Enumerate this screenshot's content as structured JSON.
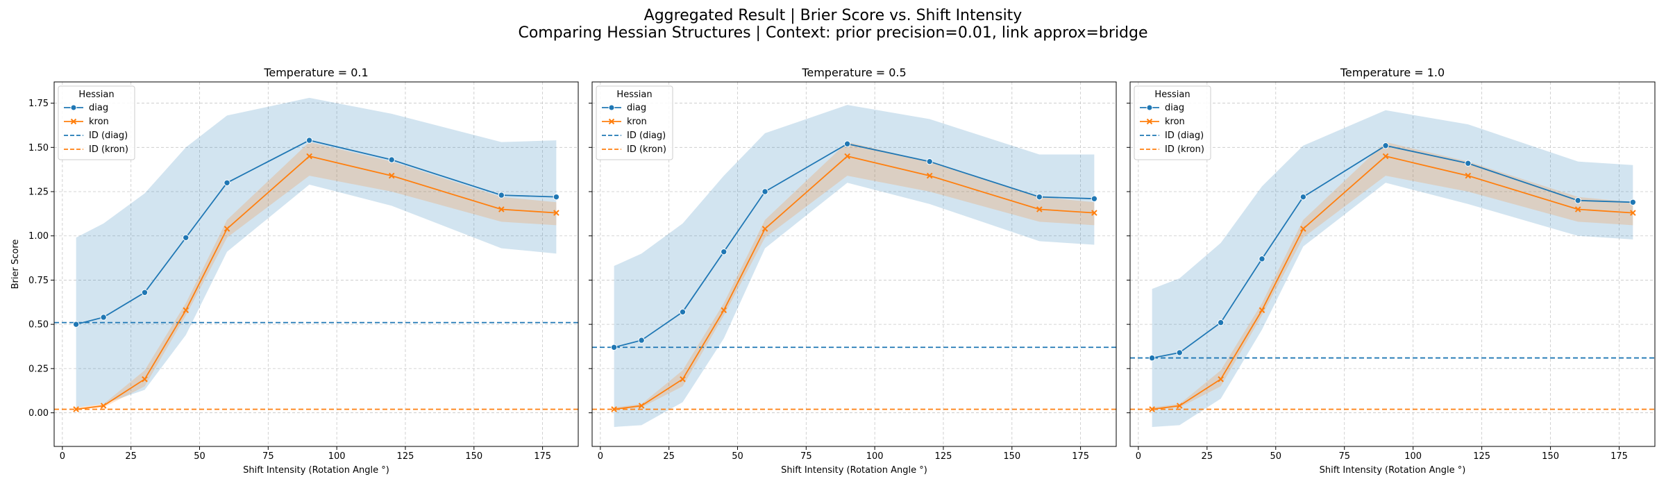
{
  "figure": {
    "title_line1": "Aggregated Result | Brier Score vs. Shift Intensity",
    "title_line2": "Comparing Hessian Structures | Context: prior precision=0.01, link approx=bridge"
  },
  "colors": {
    "diag": "#1f77b4",
    "kron": "#ff7f0e",
    "band_diag": "#1f77b4",
    "band_kron": "#ff7f0e",
    "grid": "#b0b0b0"
  },
  "chart_data": [
    {
      "type": "line",
      "title": "Temperature = 0.1",
      "xlabel": "Shift Intensity (Rotation Angle °)",
      "ylabel": "Brier Score",
      "xlim": [
        -3,
        188
      ],
      "ylim": [
        -0.19,
        1.87
      ],
      "xticks": [
        0,
        25,
        50,
        75,
        100,
        125,
        150,
        175
      ],
      "yticks": [
        0.0,
        0.25,
        0.5,
        0.75,
        1.0,
        1.25,
        1.5,
        1.75
      ],
      "grid": true,
      "legend": {
        "title": "Hessian",
        "placement": "upper-left",
        "entries": [
          "diag",
          "kron",
          "ID (diag)",
          "ID (kron)"
        ]
      },
      "x": [
        5,
        15,
        30,
        45,
        60,
        90,
        120,
        160,
        180
      ],
      "series": [
        {
          "name": "diag",
          "marker": "o",
          "values": [
            0.5,
            0.54,
            0.68,
            0.99,
            1.3,
            1.54,
            1.43,
            1.23,
            1.22
          ],
          "band_lower": [
            0.03,
            0.05,
            0.13,
            0.44,
            0.91,
            1.29,
            1.17,
            0.93,
            0.9
          ],
          "band_upper": [
            0.99,
            1.07,
            1.24,
            1.5,
            1.68,
            1.78,
            1.69,
            1.53,
            1.54
          ]
        },
        {
          "name": "kron",
          "marker": "x",
          "values": [
            0.02,
            0.04,
            0.19,
            0.58,
            1.04,
            1.45,
            1.34,
            1.15,
            1.13
          ],
          "band_lower": [
            0.02,
            0.03,
            0.15,
            0.55,
            0.99,
            1.34,
            1.25,
            1.08,
            1.06
          ],
          "band_upper": [
            0.03,
            0.05,
            0.24,
            0.62,
            1.09,
            1.53,
            1.42,
            1.22,
            1.19
          ]
        }
      ],
      "hlines": [
        {
          "name": "ID (diag)",
          "y": 0.51
        },
        {
          "name": "ID (kron)",
          "y": 0.02
        }
      ]
    },
    {
      "type": "line",
      "title": "Temperature = 0.5",
      "xlabel": "Shift Intensity (Rotation Angle °)",
      "ylabel": "",
      "xlim": [
        -3,
        188
      ],
      "ylim": [
        -0.19,
        1.87
      ],
      "xticks": [
        0,
        25,
        50,
        75,
        100,
        125,
        150,
        175
      ],
      "yticks": [
        0.0,
        0.25,
        0.5,
        0.75,
        1.0,
        1.25,
        1.5,
        1.75
      ],
      "grid": true,
      "legend": {
        "title": "Hessian",
        "placement": "upper-left",
        "entries": [
          "diag",
          "kron",
          "ID (diag)",
          "ID (kron)"
        ]
      },
      "x": [
        5,
        15,
        30,
        45,
        60,
        90,
        120,
        160,
        180
      ],
      "series": [
        {
          "name": "diag",
          "marker": "o",
          "values": [
            0.37,
            0.41,
            0.57,
            0.91,
            1.25,
            1.52,
            1.42,
            1.22,
            1.21
          ],
          "band_lower": [
            -0.08,
            -0.07,
            0.06,
            0.42,
            0.93,
            1.3,
            1.18,
            0.97,
            0.95
          ],
          "band_upper": [
            0.83,
            0.9,
            1.07,
            1.34,
            1.58,
            1.74,
            1.66,
            1.46,
            1.46
          ]
        },
        {
          "name": "kron",
          "marker": "x",
          "values": [
            0.02,
            0.04,
            0.19,
            0.58,
            1.04,
            1.45,
            1.34,
            1.15,
            1.13
          ],
          "band_lower": [
            0.02,
            0.03,
            0.15,
            0.55,
            0.99,
            1.34,
            1.25,
            1.08,
            1.06
          ],
          "band_upper": [
            0.03,
            0.05,
            0.24,
            0.62,
            1.09,
            1.53,
            1.42,
            1.22,
            1.19
          ]
        }
      ],
      "hlines": [
        {
          "name": "ID (diag)",
          "y": 0.37
        },
        {
          "name": "ID (kron)",
          "y": 0.02
        }
      ]
    },
    {
      "type": "line",
      "title": "Temperature = 1.0",
      "xlabel": "Shift Intensity (Rotation Angle °)",
      "ylabel": "",
      "xlim": [
        -3,
        188
      ],
      "ylim": [
        -0.19,
        1.87
      ],
      "xticks": [
        0,
        25,
        50,
        75,
        100,
        125,
        150,
        175
      ],
      "yticks": [
        0.0,
        0.25,
        0.5,
        0.75,
        1.0,
        1.25,
        1.5,
        1.75
      ],
      "grid": true,
      "legend": {
        "title": "Hessian",
        "placement": "upper-left",
        "entries": [
          "diag",
          "kron",
          "ID (diag)",
          "ID (kron)"
        ]
      },
      "x": [
        5,
        15,
        30,
        45,
        60,
        90,
        120,
        160,
        180
      ],
      "series": [
        {
          "name": "diag",
          "marker": "o",
          "values": [
            0.31,
            0.34,
            0.51,
            0.87,
            1.22,
            1.51,
            1.41,
            1.2,
            1.19
          ],
          "band_lower": [
            -0.08,
            -0.07,
            0.08,
            0.47,
            0.94,
            1.3,
            1.18,
            1.0,
            0.98
          ],
          "band_upper": [
            0.7,
            0.76,
            0.96,
            1.28,
            1.51,
            1.71,
            1.63,
            1.42,
            1.4
          ]
        },
        {
          "name": "kron",
          "marker": "x",
          "values": [
            0.02,
            0.04,
            0.19,
            0.58,
            1.04,
            1.45,
            1.34,
            1.15,
            1.13
          ],
          "band_lower": [
            0.02,
            0.03,
            0.15,
            0.55,
            0.99,
            1.34,
            1.25,
            1.08,
            1.06
          ],
          "band_upper": [
            0.03,
            0.05,
            0.24,
            0.62,
            1.09,
            1.53,
            1.42,
            1.22,
            1.19
          ]
        }
      ],
      "hlines": [
        {
          "name": "ID (diag)",
          "y": 0.31
        },
        {
          "name": "ID (kron)",
          "y": 0.02
        }
      ]
    }
  ]
}
